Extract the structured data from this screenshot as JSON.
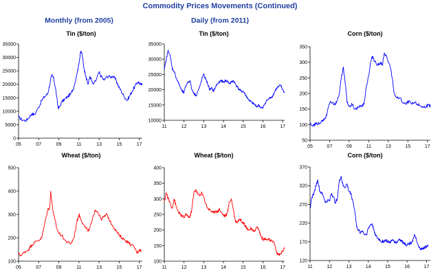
{
  "header": {
    "title": "Commodity Prices Movements (Continued)",
    "sub_monthly": "Monthly (from 2005)",
    "sub_daily": "Daily (from 2011)"
  },
  "chart_data": [
    {
      "id": "tin-monthly",
      "type": "line",
      "title": "Tin ($/ton)",
      "color": "#0000ff",
      "xlim": [
        2005,
        2017.3
      ],
      "x_ticks": [
        2005,
        2007,
        2009,
        2011,
        2013,
        2015,
        2017
      ],
      "x_tick_labels": [
        "05",
        "07",
        "09",
        "11",
        "13",
        "15",
        "17"
      ],
      "ylim": [
        0,
        35000
      ],
      "y_ticks": [
        0,
        5000,
        10000,
        15000,
        20000,
        25000,
        30000,
        35000
      ],
      "y_tick_labels": [
        "0",
        "5000",
        "10000",
        "15000",
        "20000",
        "25000",
        "30000",
        "35000"
      ],
      "series": [
        {
          "x": [
            2005,
            2005.3,
            2005.7,
            2006,
            2006.3,
            2006.6,
            2007,
            2007.3,
            2007.6,
            2007.9,
            2008.1,
            2008.3,
            2008.5,
            2008.7,
            2008.9,
            2009,
            2009.3,
            2009.6,
            2009.9,
            2010.2,
            2010.5,
            2010.8,
            2011,
            2011.15,
            2011.3,
            2011.5,
            2011.7,
            2011.9,
            2012.1,
            2012.4,
            2012.7,
            2013,
            2013.2,
            2013.5,
            2013.8,
            2014.1,
            2014.4,
            2014.7,
            2014.9,
            2015.2,
            2015.5,
            2015.8,
            2016,
            2016.3,
            2016.6,
            2016.9,
            2017.1,
            2017.3
          ],
          "y": [
            7800,
            6900,
            6500,
            7500,
            9000,
            8800,
            11500,
            14000,
            15500,
            16500,
            20000,
            23500,
            22000,
            18000,
            12000,
            11000,
            13500,
            14500,
            15500,
            16500,
            19000,
            24000,
            27500,
            32000,
            31500,
            26000,
            23000,
            20000,
            23000,
            20000,
            21500,
            24500,
            23000,
            21500,
            23000,
            22800,
            23000,
            21500,
            19500,
            17500,
            15500,
            14000,
            15500,
            17500,
            19500,
            21000,
            20000,
            19800
          ]
        }
      ]
    },
    {
      "id": "wheat-monthly",
      "type": "line",
      "title": "Wheat ($/ton)",
      "color": "#ff0000",
      "xlim": [
        2005,
        2017.3
      ],
      "x_ticks": [
        2005,
        2007,
        2009,
        2011,
        2013,
        2015,
        2017
      ],
      "x_tick_labels": [
        "05",
        "07",
        "09",
        "11",
        "13",
        "15",
        "17"
      ],
      "ylim": [
        100,
        500
      ],
      "y_ticks": [
        100,
        200,
        300,
        400,
        500
      ],
      "y_tick_labels": [
        "100",
        "200",
        "300",
        "400",
        "500"
      ],
      "series": [
        {
          "x": [
            2005,
            2005.3,
            2005.6,
            2006,
            2006.3,
            2006.6,
            2007,
            2007.3,
            2007.6,
            2007.9,
            2008.1,
            2008.2,
            2008.4,
            2008.6,
            2008.8,
            2009,
            2009.3,
            2009.6,
            2009.9,
            2010.2,
            2010.5,
            2010.8,
            2011,
            2011.2,
            2011.4,
            2011.7,
            2012,
            2012.3,
            2012.6,
            2012.9,
            2013.2,
            2013.5,
            2013.8,
            2014.1,
            2014.4,
            2014.7,
            2015,
            2015.3,
            2015.6,
            2015.9,
            2016.2,
            2016.5,
            2016.8,
            2017,
            2017.2
          ],
          "y": [
            130,
            125,
            140,
            150,
            170,
            180,
            190,
            200,
            260,
            320,
            330,
            400,
            320,
            280,
            240,
            220,
            210,
            190,
            180,
            175,
            200,
            270,
            300,
            280,
            260,
            240,
            230,
            270,
            320,
            310,
            280,
            290,
            300,
            270,
            250,
            230,
            210,
            200,
            190,
            180,
            170,
            160,
            135,
            150,
            145
          ]
        }
      ]
    },
    {
      "id": "tin-daily",
      "type": "line",
      "title": "Tin ($/ton)",
      "color": "#0000ff",
      "xlim": [
        2011,
        2017.1
      ],
      "x_ticks": [
        2011,
        2012,
        2013,
        2014,
        2015,
        2016,
        2017
      ],
      "x_tick_labels": [
        "11",
        "12",
        "13",
        "14",
        "15",
        "16",
        "17"
      ],
      "ylim": [
        10000,
        35000
      ],
      "y_ticks": [
        10000,
        15000,
        20000,
        25000,
        30000,
        35000
      ],
      "y_tick_labels": [
        "10000",
        "15000",
        "20000",
        "25000",
        "30000",
        "35000"
      ],
      "series": [
        {
          "x": [
            2011,
            2011.1,
            2011.2,
            2011.3,
            2011.4,
            2011.5,
            2011.6,
            2011.7,
            2011.8,
            2011.9,
            2012,
            2012.1,
            2012.2,
            2012.3,
            2012.4,
            2012.5,
            2012.6,
            2012.7,
            2012.8,
            2012.9,
            2013,
            2013.1,
            2013.2,
            2013.3,
            2013.4,
            2013.5,
            2013.6,
            2013.7,
            2013.8,
            2013.9,
            2014,
            2014.1,
            2014.2,
            2014.3,
            2014.4,
            2014.5,
            2014.6,
            2014.7,
            2014.8,
            2014.9,
            2015,
            2015.1,
            2015.2,
            2015.3,
            2015.4,
            2015.5,
            2015.6,
            2015.7,
            2015.8,
            2015.9,
            2016,
            2016.1,
            2016.2,
            2016.3,
            2016.4,
            2016.5,
            2016.6,
            2016.7,
            2016.8,
            2016.9,
            2017,
            2017.1
          ],
          "y": [
            26500,
            30000,
            33000,
            31000,
            27000,
            26000,
            24000,
            22500,
            21000,
            19500,
            19000,
            21500,
            22500,
            23000,
            20000,
            19000,
            18000,
            19500,
            21000,
            23500,
            25000,
            23500,
            22000,
            20000,
            20500,
            19500,
            21000,
            22000,
            22500,
            23000,
            22500,
            23000,
            22800,
            22000,
            22500,
            23000,
            22000,
            21000,
            20000,
            19500,
            19500,
            18500,
            17500,
            16500,
            16000,
            15500,
            15000,
            14500,
            15000,
            14000,
            14000,
            15500,
            16500,
            17000,
            17500,
            18000,
            19500,
            20500,
            21000,
            21500,
            20000,
            19000
          ]
        }
      ]
    },
    {
      "id": "wheat-daily",
      "type": "line",
      "title": "Wheat ($/ton)",
      "color": "#ff0000",
      "xlim": [
        2011,
        2017.1
      ],
      "x_ticks": [
        2011,
        2012,
        2013,
        2014,
        2015,
        2016,
        2017
      ],
      "x_tick_labels": [
        "11",
        "12",
        "13",
        "14",
        "15",
        "16",
        "17"
      ],
      "ylim": [
        100,
        400
      ],
      "y_ticks": [
        100,
        150,
        200,
        250,
        300,
        350,
        400
      ],
      "y_tick_labels": [
        "100",
        "150",
        "200",
        "250",
        "300",
        "350",
        "400"
      ],
      "series": [
        {
          "x": [
            2011,
            2011.1,
            2011.2,
            2011.3,
            2011.4,
            2011.5,
            2011.6,
            2011.7,
            2011.8,
            2011.9,
            2012,
            2012.1,
            2012.2,
            2012.3,
            2012.4,
            2012.5,
            2012.6,
            2012.7,
            2012.8,
            2012.9,
            2013,
            2013.1,
            2013.2,
            2013.3,
            2013.4,
            2013.5,
            2013.6,
            2013.7,
            2013.8,
            2013.9,
            2014,
            2014.1,
            2014.2,
            2014.3,
            2014.4,
            2014.5,
            2014.6,
            2014.7,
            2014.8,
            2014.9,
            2015,
            2015.1,
            2015.2,
            2015.3,
            2015.4,
            2015.5,
            2015.6,
            2015.7,
            2015.8,
            2015.9,
            2016,
            2016.1,
            2016.2,
            2016.3,
            2016.4,
            2016.5,
            2016.6,
            2016.7,
            2016.8,
            2016.9,
            2017,
            2017.1
          ],
          "y": [
            290,
            320,
            300,
            285,
            270,
            300,
            275,
            260,
            250,
            245,
            240,
            250,
            245,
            240,
            270,
            320,
            330,
            315,
            310,
            320,
            305,
            285,
            270,
            265,
            260,
            255,
            262,
            258,
            268,
            255,
            248,
            245,
            255,
            290,
            300,
            265,
            230,
            225,
            235,
            230,
            225,
            215,
            205,
            200,
            205,
            195,
            200,
            210,
            200,
            180,
            170,
            172,
            168,
            170,
            165,
            162,
            155,
            125,
            120,
            125,
            132,
            145
          ]
        }
      ]
    },
    {
      "id": "corn-daily-top",
      "type": "line",
      "title": "Corn ($/ton)",
      "color": "#0000ff",
      "xlim": [
        2005,
        2017.3
      ],
      "x_ticks": [
        2005,
        2007,
        2009,
        2011,
        2013,
        2015,
        2017
      ],
      "x_tick_labels": [
        "05",
        "07",
        "09",
        "11",
        "13",
        "15",
        "17"
      ],
      "ylim": [
        50,
        350
      ],
      "y_ticks": [
        50,
        100,
        150,
        200,
        250,
        300,
        350
      ],
      "y_tick_labels": [
        "50",
        "100",
        "150",
        "200",
        "250",
        "300",
        "350"
      ],
      "series": [
        {
          "x": [
            2005,
            2005.3,
            2005.6,
            2006,
            2006.3,
            2006.6,
            2006.9,
            2007.1,
            2007.4,
            2007.7,
            2008,
            2008.2,
            2008.4,
            2008.6,
            2008.8,
            2009,
            2009.3,
            2009.6,
            2009.9,
            2010.2,
            2010.5,
            2010.8,
            2011,
            2011.2,
            2011.4,
            2011.6,
            2011.9,
            2012.2,
            2012.4,
            2012.6,
            2012.8,
            2013,
            2013.2,
            2013.4,
            2013.6,
            2013.9,
            2014.2,
            2014.5,
            2014.8,
            2015.1,
            2015.4,
            2015.7,
            2016,
            2016.3,
            2016.6,
            2016.9,
            2017.1,
            2017.3
          ],
          "y": [
            100,
            98,
            102,
            105,
            115,
            120,
            160,
            175,
            165,
            170,
            200,
            250,
            285,
            230,
            170,
            160,
            165,
            150,
            155,
            160,
            165,
            230,
            260,
            300,
            320,
            305,
            290,
            300,
            290,
            330,
            320,
            300,
            285,
            250,
            200,
            185,
            185,
            170,
            165,
            175,
            165,
            170,
            165,
            160,
            155,
            160,
            162,
            158
          ]
        }
      ]
    },
    {
      "id": "corn-daily-bottom",
      "type": "line",
      "title": "Corn ($/ton)",
      "color": "#0000ff",
      "xlim": [
        2011,
        2017.2
      ],
      "x_ticks": [
        2011,
        2012,
        2013,
        2014,
        2015,
        2016,
        2017
      ],
      "x_tick_labels": [
        "11",
        "12",
        "13",
        "14",
        "15",
        "16",
        "17"
      ],
      "ylim": [
        120,
        370
      ],
      "y_ticks": [
        120,
        170,
        220,
        270,
        320,
        370
      ],
      "y_tick_labels": [
        "120",
        "170",
        "220",
        "270",
        "320",
        "370"
      ],
      "series": [
        {
          "x": [
            2011,
            2011.1,
            2011.2,
            2011.3,
            2011.4,
            2011.5,
            2011.6,
            2011.7,
            2011.8,
            2011.9,
            2012,
            2012.1,
            2012.2,
            2012.3,
            2012.4,
            2012.5,
            2012.6,
            2012.7,
            2012.8,
            2012.9,
            2013,
            2013.1,
            2013.2,
            2013.3,
            2013.4,
            2013.5,
            2013.6,
            2013.7,
            2013.8,
            2013.9,
            2014,
            2014.1,
            2014.2,
            2014.3,
            2014.4,
            2014.5,
            2014.6,
            2014.7,
            2014.8,
            2014.9,
            2015,
            2015.1,
            2015.2,
            2015.3,
            2015.4,
            2015.5,
            2015.6,
            2015.7,
            2015.8,
            2015.9,
            2016,
            2016.1,
            2016.2,
            2016.3,
            2016.4,
            2016.5,
            2016.6,
            2016.7,
            2016.8,
            2016.9,
            2017,
            2017.1
          ],
          "y": [
            260,
            290,
            300,
            320,
            335,
            305,
            300,
            290,
            275,
            280,
            280,
            300,
            290,
            275,
            285,
            330,
            345,
            320,
            315,
            325,
            305,
            300,
            280,
            255,
            210,
            200,
            195,
            200,
            190,
            190,
            205,
            215,
            218,
            200,
            185,
            178,
            175,
            170,
            172,
            175,
            170,
            168,
            172,
            175,
            168,
            170,
            178,
            172,
            168,
            165,
            162,
            165,
            168,
            175,
            188,
            170,
            155,
            152,
            150,
            155,
            157,
            160
          ]
        }
      ]
    }
  ]
}
